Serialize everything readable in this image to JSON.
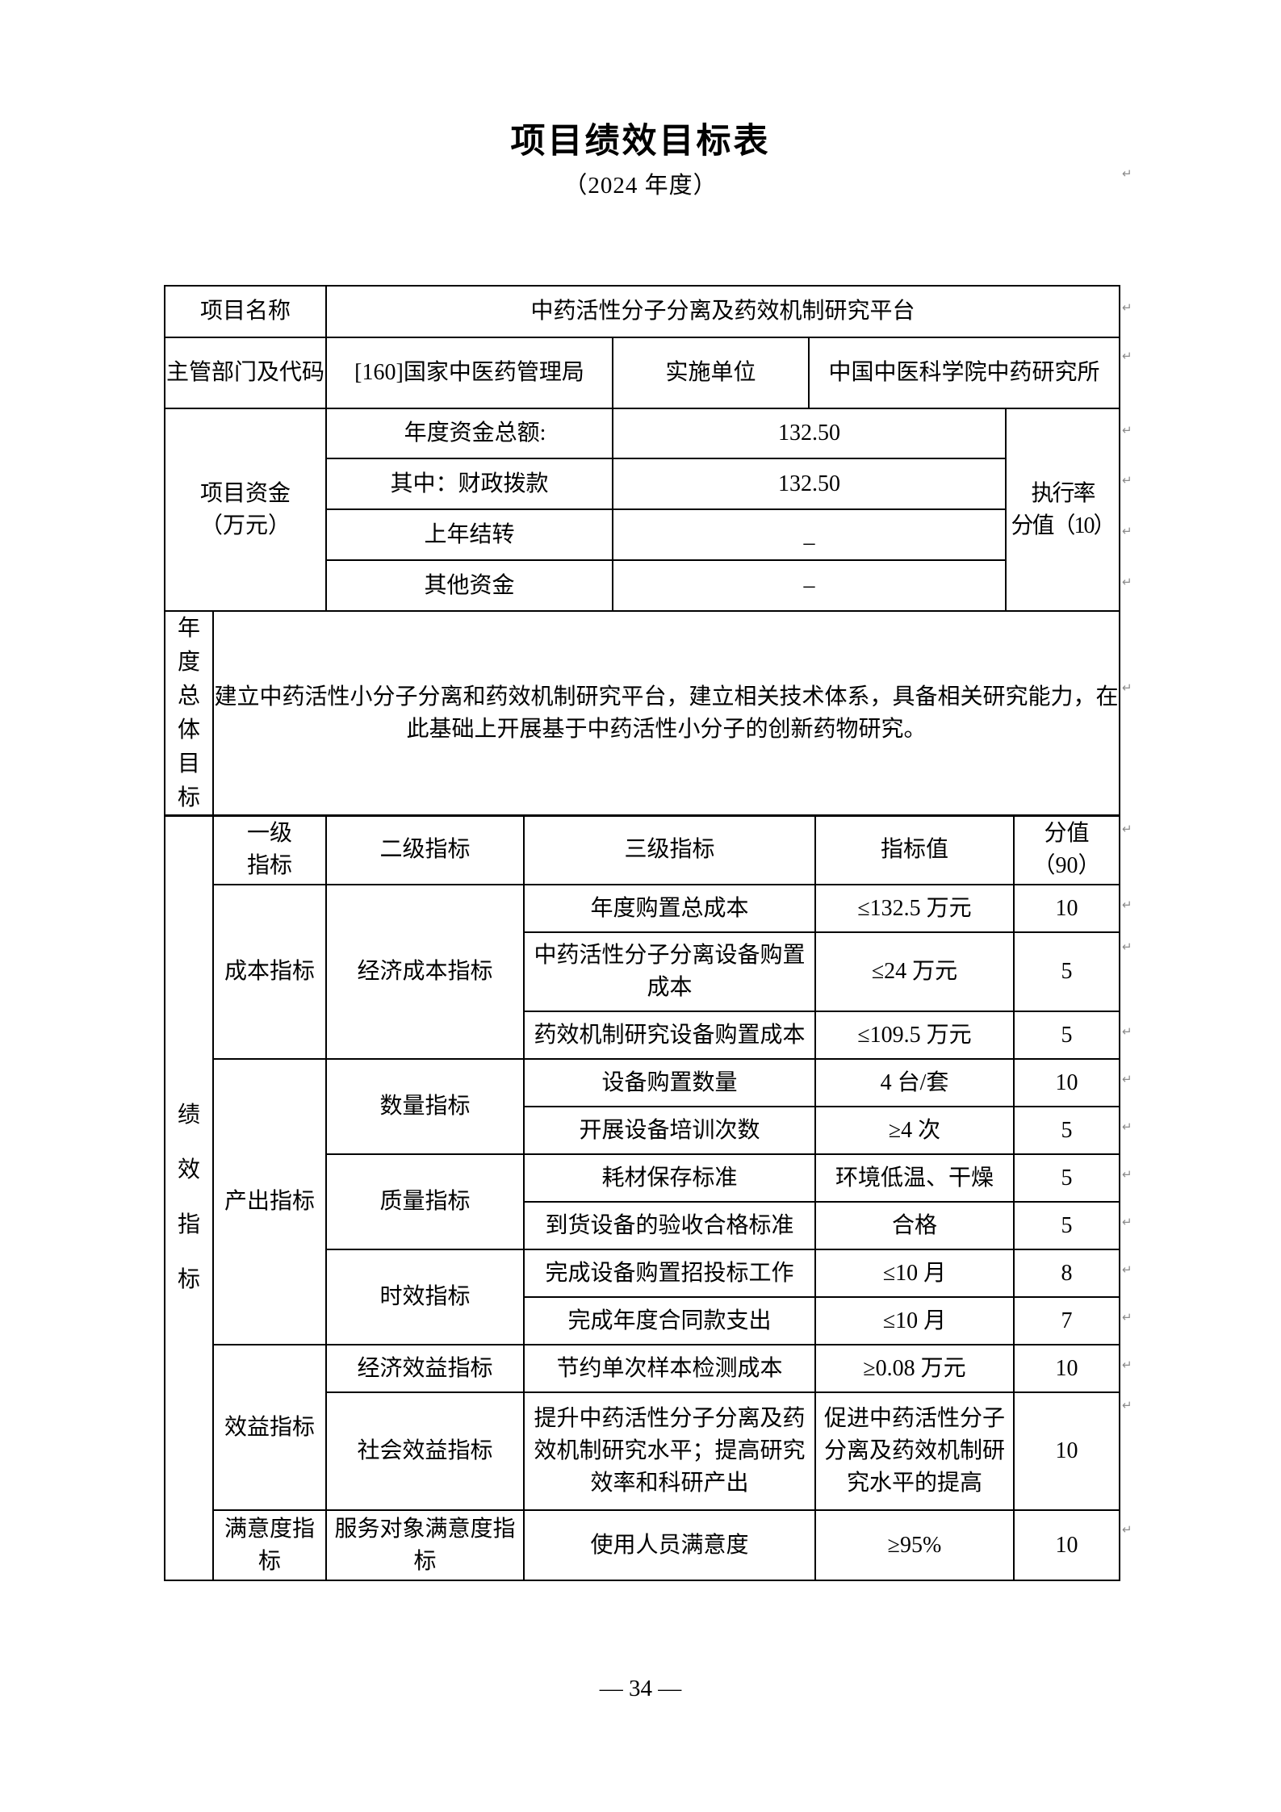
{
  "page": {
    "title": "项目绩效目标表",
    "subtitle": "（2024 年度）",
    "page_number": "— 34 —"
  },
  "info": {
    "project_name_label": "项目名称",
    "project_name": "中药活性分子分离及药效机制研究平台",
    "dept_label": "主管部门及代码",
    "dept_value": "[160]国家中医药管理局",
    "impl_label": "实施单位",
    "impl_value": "中国中医科学院中药研究所"
  },
  "funding": {
    "section_line1": "项目资金",
    "section_line2": "（万元）",
    "rows": [
      {
        "label": "年度资金总额:",
        "value": "132.50"
      },
      {
        "label": "其中：财政拨款",
        "value": "132.50"
      },
      {
        "label": "上年结转",
        "value": "–"
      },
      {
        "label": "其他资金",
        "value": "–"
      }
    ],
    "exec_rate_line1": "执行率",
    "exec_rate_line2": "分值（10）"
  },
  "annual_goal": {
    "label": "年度总体目标",
    "text": "建立中药活性小分子分离和药效机制研究平台，建立相关技术体系，具备相关研究能力，在此基础上开展基于中药活性小分子的创新药物研究。"
  },
  "indicators": {
    "section_label": "绩效指标",
    "headers": {
      "l1": "一级指标",
      "l2": "二级指标",
      "l3": "三级指标",
      "value": "指标值",
      "score_line1": "分值",
      "score_line2": "（90）"
    },
    "rows": [
      {
        "l1": "成本指标",
        "l2": "经济成本指标",
        "l3": "年度购置总成本",
        "value": "≤132.5 万元",
        "score": "10"
      },
      {
        "l3": "中药活性分子分离设备购置成本",
        "value": "≤24 万元",
        "score": "5"
      },
      {
        "l3": "药效机制研究设备购置成本",
        "value": "≤109.5 万元",
        "score": "5"
      },
      {
        "l1": "产出指标",
        "l2": "数量指标",
        "l3": "设备购置数量",
        "value": "4 台/套",
        "score": "10"
      },
      {
        "l3": "开展设备培训次数",
        "value": "≥4 次",
        "score": "5"
      },
      {
        "l2": "质量指标",
        "l3": "耗材保存标准",
        "value": "环境低温、干燥",
        "score": "5"
      },
      {
        "l3": "到货设备的验收合格标准",
        "value": "合格",
        "score": "5"
      },
      {
        "l2": "时效指标",
        "l3": "完成设备购置招投标工作",
        "value": "≤10 月",
        "score": "8"
      },
      {
        "l3": "完成年度合同款支出",
        "value": "≤10 月",
        "score": "7"
      },
      {
        "l1": "效益指标",
        "l2": "经济效益指标",
        "l3": "节约单次样本检测成本",
        "value": "≥0.08 万元",
        "score": "10"
      },
      {
        "l2": "社会效益指标",
        "l3": "提升中药活性分子分离及药效机制研究水平；提高研究效率和科研产出",
        "value": "促进中药活性分子分离及药效机制研究水平的提高",
        "score": "10"
      },
      {
        "l1": "满意度指标",
        "l2": "服务对象满意度指标",
        "l3": "使用人员满意度",
        "value": "≥95%",
        "score": "10"
      }
    ]
  },
  "marks": {
    "glyph": "↵",
    "positions": [
      208,
      374,
      434,
      526,
      588,
      651,
      714,
      845,
      1020,
      1114,
      1166,
      1271,
      1330,
      1389,
      1448,
      1507,
      1566,
      1625,
      1684,
      1734,
      1888
    ]
  }
}
